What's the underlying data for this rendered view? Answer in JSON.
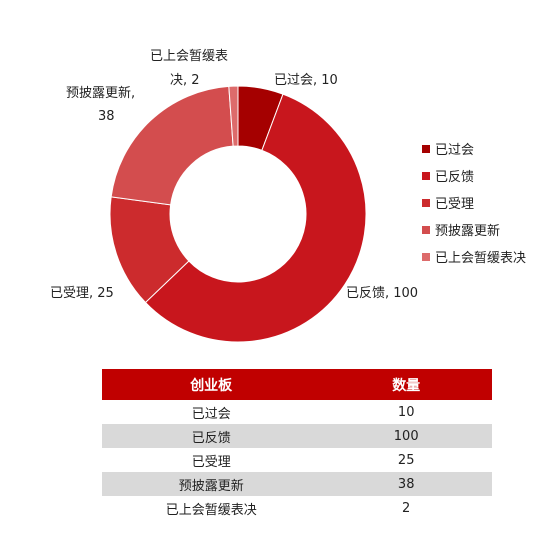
{
  "chart_data": {
    "type": "pie",
    "variant": "donut",
    "categories": [
      "已过会",
      "已反馈",
      "已受理",
      "预披露更新",
      "已上会暂缓表决"
    ],
    "values": [
      10,
      100,
      25,
      38,
      2
    ],
    "data_labels": [
      "已过会, 10",
      "已反馈, 100",
      "已受理, 25",
      "预披露更新, 38",
      "已上会暂缓表决, 2"
    ],
    "colors": [
      "#a50000",
      "#c8161d",
      "#cc2b2d",
      "#d34d4e",
      "#dd6b6b"
    ],
    "legend_position": "right"
  },
  "table": {
    "headers": [
      "创业板",
      "数量"
    ],
    "rows": [
      [
        "已过会",
        "10"
      ],
      [
        "已反馈",
        "100"
      ],
      [
        "已受理",
        "25"
      ],
      [
        "预披露更新",
        "38"
      ],
      [
        "已上会暂缓表决",
        "2"
      ]
    ],
    "header_color": "#c00000",
    "stripe_color": "#d9d9d9"
  }
}
